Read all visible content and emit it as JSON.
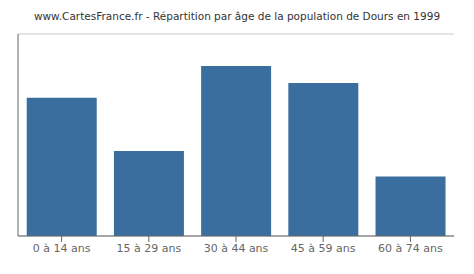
{
  "chart_data": {
    "type": "bar",
    "title": "www.CartesFrance.fr - Répartition par âge de la population de Dours en 1999",
    "categories": [
      "0 à 14 ans",
      "15 à 29 ans",
      "30 à 44 ans",
      "45 à 59 ans",
      "60 à 74 ans"
    ],
    "values": [
      65,
      40,
      80,
      72,
      28
    ],
    "color": "#3a6e9e",
    "ylim": [
      0,
      95
    ],
    "yticks": [
      0,
      20,
      40,
      60,
      80
    ],
    "grid": true,
    "tick_labels": "x"
  }
}
